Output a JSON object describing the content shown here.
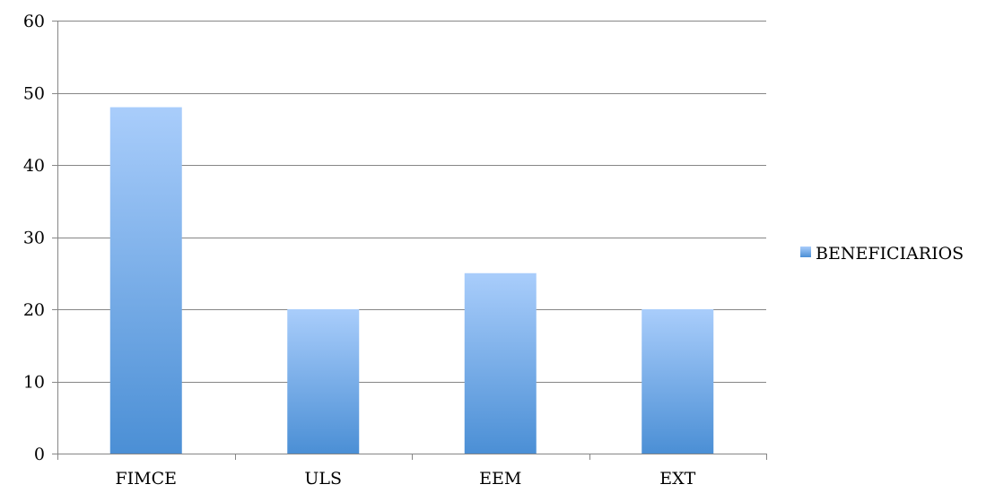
{
  "chart_data": {
    "type": "bar",
    "categories": [
      "FIMCE",
      "ULS",
      "EEM",
      "EXT"
    ],
    "series": [
      {
        "name": "BENEFICIARIOS",
        "values": [
          48,
          20,
          25,
          20
        ]
      }
    ],
    "title": "",
    "xlabel": "",
    "ylabel": "",
    "ylim": [
      0,
      60
    ],
    "yticks": [
      0,
      10,
      20,
      30,
      40,
      50,
      60
    ],
    "grid": true,
    "legend_position": "right",
    "colors": {
      "bar_top": "#a9cdfb",
      "bar_bottom": "#4b8fd5",
      "grid": "#868686"
    }
  }
}
